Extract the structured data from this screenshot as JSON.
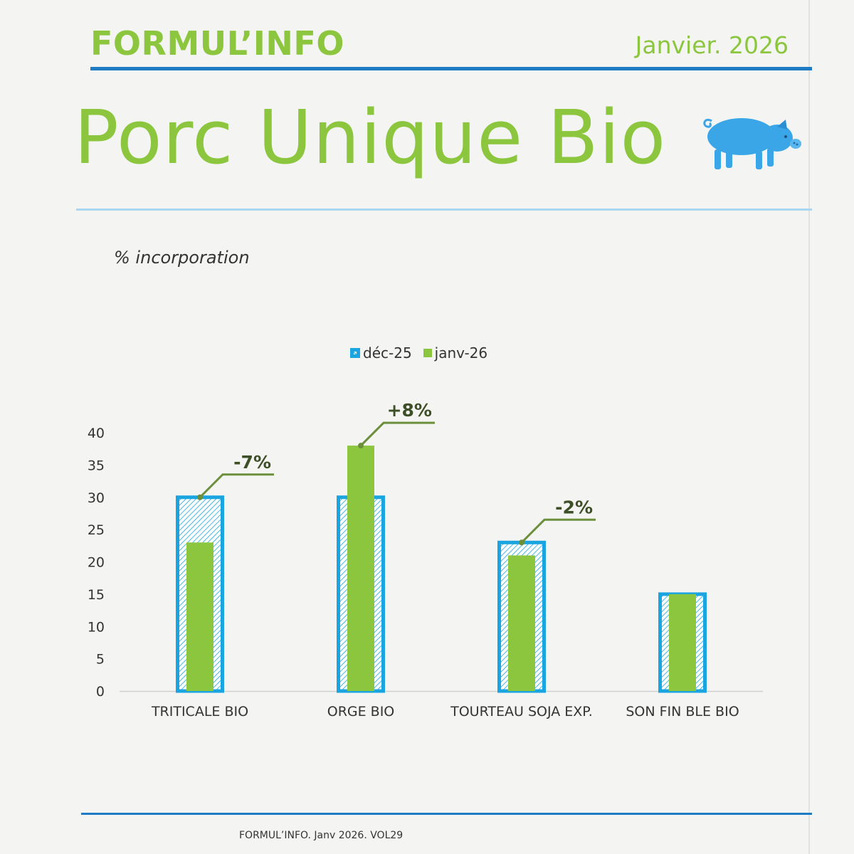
{
  "header": {
    "brand": "FORMUL’INFO",
    "date": "Janvier. 2026",
    "title": "Porc Unique Bio"
  },
  "footer": {
    "text": "FORMUL’INFO. Janv 2026. VOL29"
  },
  "colors": {
    "green": "#8cc63f",
    "blue": "#1aa4e0",
    "dark_blue": "#1f7cc4",
    "annotation": "#6b8f3a"
  },
  "icons": {
    "pig": "pig-icon"
  },
  "chart_data": {
    "type": "bar",
    "unit_label": "% incorporation",
    "categories": [
      "TRITICALE BIO",
      "ORGE BIO",
      "TOURTEAU SOJA EXP.",
      "SON FIN BLE BIO"
    ],
    "series": [
      {
        "name": "déc-25",
        "values": [
          30,
          30,
          23,
          15
        ]
      },
      {
        "name": "janv-26",
        "values": [
          23,
          38,
          21,
          15
        ]
      }
    ],
    "yticks": [
      0,
      5,
      10,
      15,
      20,
      25,
      30,
      35,
      40
    ],
    "ylim": [
      0,
      40
    ],
    "annotations": [
      {
        "category": "TRITICALE BIO",
        "text": "-7%"
      },
      {
        "category": "ORGE BIO",
        "text": "+8%"
      },
      {
        "category": "TOURTEAU SOJA EXP.",
        "text": "-2%"
      }
    ],
    "legend_position": "top-center",
    "grid": false
  }
}
